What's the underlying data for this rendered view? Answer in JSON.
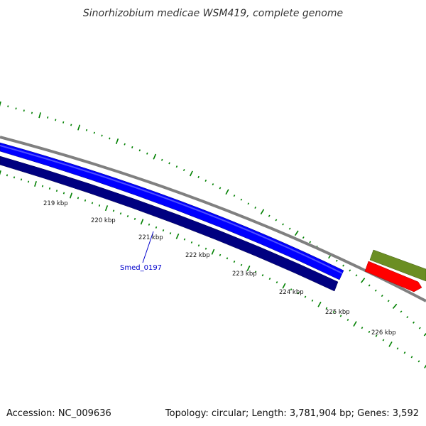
{
  "title": "Sinorhizobium medicae WSM419, complete genome",
  "footer": {
    "accession": "Accession: NC_009636",
    "summary": "Topology: circular; Length: 3,781,904 bp; Genes: 3,592"
  },
  "scale": {
    "kbp_labels": [
      "219 kbp",
      "220 kbp",
      "221 kbp",
      "222 kbp",
      "223 kbp",
      "224 kbp",
      "225 kbp",
      "226 kbp"
    ]
  },
  "gene_labels": [
    {
      "name": "Smed_0197",
      "color": "#0000cc"
    }
  ],
  "colors": {
    "backbone": "#808080",
    "forward_gene": "#0000ff",
    "reverse_gene": "#000080",
    "olive_gene": "#6b8e23",
    "red_gene": "#ff0000",
    "ticks": "#008000"
  }
}
